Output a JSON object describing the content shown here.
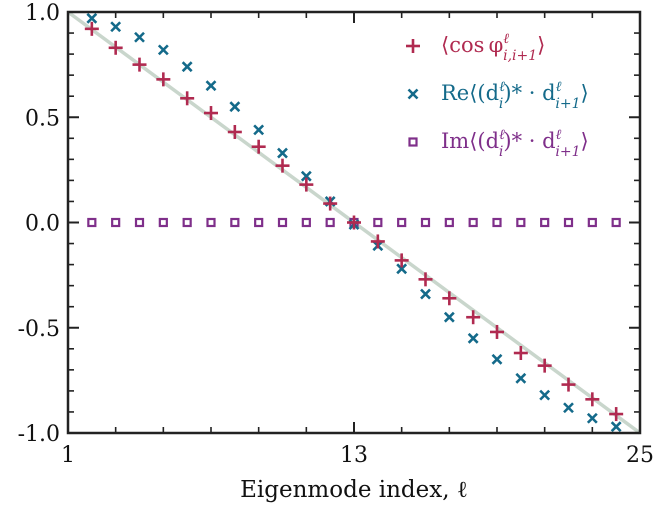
{
  "chart_data": {
    "type": "scatter",
    "xlabel": "Eigenmode index, ℓ",
    "xlim": [
      1,
      25
    ],
    "ylim": [
      -1.0,
      1.0
    ],
    "xticks": [
      1,
      13,
      25
    ],
    "xtick_labels": [
      "1",
      "13",
      "25"
    ],
    "yticks": [
      1.0,
      0.5,
      0.0,
      -0.5,
      -1.0
    ],
    "ytick_labels": [
      "1.0",
      "0.5",
      "0.0",
      "-0.5",
      "-1.0"
    ],
    "grid": false,
    "legend_position": "top-right",
    "reference_line": {
      "x": [
        1,
        25
      ],
      "y": [
        1.0,
        -1.0
      ],
      "color": "#c9d6cc"
    },
    "series": [
      {
        "name": "⟨cos φℓ i,i+1⟩",
        "legend_main": "⟨cos φ",
        "legend_sup": "ℓ",
        "legend_sub": "i,i+1",
        "legend_tail": "⟩",
        "marker": "plus",
        "color": "#b02a50",
        "x": [
          2,
          3,
          4,
          5,
          6,
          7,
          8,
          9,
          10,
          11,
          12,
          13,
          14,
          15,
          16,
          17,
          18,
          19,
          20,
          21,
          22,
          23,
          24
        ],
        "y": [
          0.92,
          0.83,
          0.75,
          0.68,
          0.59,
          0.52,
          0.43,
          0.36,
          0.27,
          0.18,
          0.09,
          0.0,
          -0.09,
          -0.18,
          -0.27,
          -0.36,
          -0.45,
          -0.52,
          -0.62,
          -0.68,
          -0.77,
          -0.84,
          -0.91
        ]
      },
      {
        "name": "Re⟨(dℓ i)* · dℓ i+1⟩",
        "legend_main": "Re⟨(d",
        "legend_sup": "ℓ",
        "legend_sub": "i",
        "legend_mid": ")* · d",
        "legend_sup2": "ℓ",
        "legend_sub2": "i+1",
        "legend_tail": "⟩",
        "marker": "x",
        "color": "#146a8a",
        "x": [
          2,
          3,
          4,
          5,
          6,
          7,
          8,
          9,
          10,
          11,
          12,
          13,
          14,
          15,
          16,
          17,
          18,
          19,
          20,
          21,
          22,
          23,
          24
        ],
        "y": [
          0.97,
          0.93,
          0.88,
          0.82,
          0.74,
          0.65,
          0.55,
          0.44,
          0.33,
          0.22,
          0.1,
          -0.01,
          -0.11,
          -0.22,
          -0.34,
          -0.45,
          -0.55,
          -0.65,
          -0.74,
          -0.82,
          -0.88,
          -0.93,
          -0.97
        ]
      },
      {
        "name": "Im⟨(dℓ i)* · dℓ i+1⟩",
        "legend_main": "Im⟨(d",
        "legend_sup": "ℓ",
        "legend_sub": "i",
        "legend_mid": ")* · d",
        "legend_sup2": "ℓ",
        "legend_sub2": "i+1",
        "legend_tail": "⟩",
        "marker": "square",
        "color": "#7f2f8a",
        "x": [
          2,
          3,
          4,
          5,
          6,
          7,
          8,
          9,
          10,
          11,
          12,
          13,
          14,
          15,
          16,
          17,
          18,
          19,
          20,
          21,
          22,
          23,
          24
        ],
        "y": [
          0,
          0,
          0,
          0,
          0,
          0,
          0,
          0,
          0,
          0,
          0,
          0,
          0,
          0,
          0,
          0,
          0,
          0,
          0,
          0,
          0,
          0,
          0
        ]
      }
    ]
  }
}
